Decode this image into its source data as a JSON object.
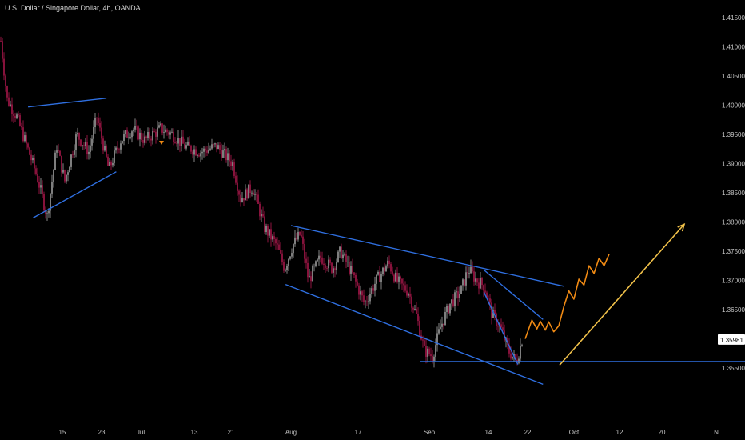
{
  "header": {
    "title": "U.S. Dollar / Singapore Dollar, 4h, OANDA"
  },
  "colors": {
    "background": "#000000",
    "candle_up": "#a8a8a8",
    "candle_down": "#b3194f",
    "trendline": "#2f6fe0",
    "projection_wave": "#f08a14",
    "projection_arrow": "#f2c24a",
    "price_badge_bg": "#ffffff",
    "axis_text": "#c8c8c8"
  },
  "chart_data": {
    "type": "candlestick",
    "title": "U.S. Dollar / Singapore Dollar, 4h, OANDA",
    "ylim": [
      1.349,
      1.419
    ],
    "y_ticks": [
      "1.41500",
      "1.41000",
      "1.40500",
      "1.40000",
      "1.39500",
      "1.39000",
      "1.38500",
      "1.38000",
      "1.37500",
      "1.37000",
      "1.36500",
      "1.36000",
      "1.35500"
    ],
    "x_ticks": [
      "15",
      "23",
      "Jul",
      "13",
      "21",
      "Aug",
      "17",
      "Sep",
      "14",
      "22",
      "Oct",
      "12",
      "20",
      "N"
    ],
    "last_price": "1.35981",
    "grid": false,
    "price_path": [
      [
        0,
        1.411
      ],
      [
        8,
        1.401
      ],
      [
        20,
        1.398
      ],
      [
        30,
        1.394
      ],
      [
        45,
        1.388
      ],
      [
        58,
        1.381
      ],
      [
        70,
        1.393
      ],
      [
        80,
        1.387
      ],
      [
        95,
        1.395
      ],
      [
        110,
        1.392
      ],
      [
        120,
        1.398
      ],
      [
        135,
        1.389
      ],
      [
        150,
        1.394
      ],
      [
        165,
        1.396
      ],
      [
        180,
        1.394
      ],
      [
        200,
        1.396
      ],
      [
        215,
        1.395
      ],
      [
        230,
        1.393
      ],
      [
        250,
        1.392
      ],
      [
        270,
        1.393
      ],
      [
        290,
        1.39
      ],
      [
        300,
        1.384
      ],
      [
        315,
        1.386
      ],
      [
        330,
        1.379
      ],
      [
        345,
        1.376
      ],
      [
        355,
        1.372
      ],
      [
        365,
        1.376
      ],
      [
        375,
        1.378
      ],
      [
        385,
        1.37
      ],
      [
        400,
        1.374
      ],
      [
        415,
        1.372
      ],
      [
        425,
        1.375
      ],
      [
        440,
        1.371
      ],
      [
        455,
        1.366
      ],
      [
        470,
        1.37
      ],
      [
        485,
        1.373
      ],
      [
        495,
        1.37
      ],
      [
        510,
        1.368
      ],
      [
        520,
        1.364
      ],
      [
        530,
        1.358
      ],
      [
        540,
        1.357
      ],
      [
        550,
        1.362
      ],
      [
        562,
        1.366
      ],
      [
        575,
        1.368
      ],
      [
        585,
        1.372
      ],
      [
        595,
        1.37
      ],
      [
        605,
        1.369
      ],
      [
        615,
        1.364
      ],
      [
        625,
        1.362
      ],
      [
        635,
        1.358
      ],
      [
        645,
        1.356
      ],
      [
        652,
        1.3598
      ]
    ],
    "trendlines": [
      {
        "x1": "2020-06-08",
        "y1": 1.3997,
        "x2": "2020-06-24",
        "y2": 1.4012
      },
      {
        "x1": "2020-06-09",
        "y1": 1.3807,
        "x2": "2020-06-26",
        "y2": 1.3886
      },
      {
        "x1": "2020-08-01",
        "y1": 1.3794,
        "x2": "2020-09-29",
        "y2": 1.369
      },
      {
        "x1": "2020-07-31",
        "y1": 1.3693,
        "x2": "2020-09-25",
        "y2": 1.3522
      },
      {
        "x1": "2020-09-13",
        "y1": 1.3718,
        "x2": "2020-09-25",
        "y2": 1.3633
      },
      {
        "x1": "2020-09-13",
        "y1": 1.368,
        "x2": "2020-09-20",
        "y2": 1.3556
      },
      {
        "x1": "2020-08-30",
        "y1": 1.3561,
        "x2": "2020-11-15",
        "y2": 1.3561
      }
    ],
    "projection_wave": [
      [
        1.36,
        0
      ],
      [
        1.3632,
        4
      ],
      [
        1.3617,
        7
      ],
      [
        1.363,
        9
      ],
      [
        1.3615,
        12
      ],
      [
        1.3629,
        14
      ],
      [
        1.3612,
        17
      ],
      [
        1.3622,
        20
      ],
      [
        1.3655,
        23
      ],
      [
        1.3682,
        26
      ],
      [
        1.3668,
        29
      ],
      [
        1.3702,
        32
      ],
      [
        1.3692,
        35
      ],
      [
        1.3725,
        38
      ],
      [
        1.3712,
        41
      ],
      [
        1.3738,
        44
      ],
      [
        1.3725,
        47
      ],
      [
        1.3745,
        50
      ]
    ],
    "projection_arrow": {
      "from": 1.3555,
      "to": 1.3796
    }
  }
}
